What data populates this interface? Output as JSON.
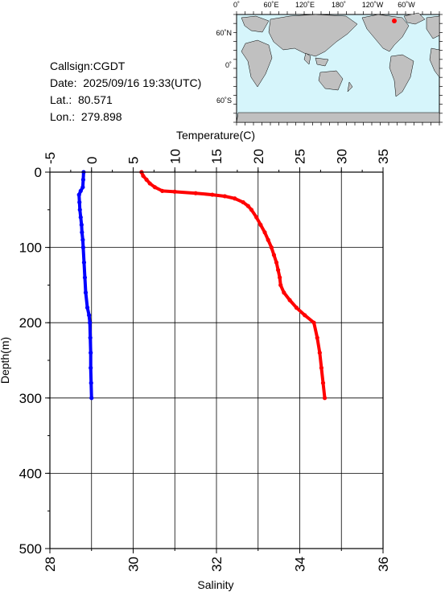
{
  "info": {
    "callsign": "Callsign:CGDT",
    "date": "Date:  2025/09/16 19:33(UTC)",
    "lat": "Lat.:  80.571",
    "lon": "Lon.:  279.898"
  },
  "map": {
    "top_labels": [
      "0˚",
      "60˚E",
      "120˚E",
      "180˚",
      "120˚W",
      "60˚W"
    ],
    "side_labels": [
      "60˚N",
      "0˚",
      "60˚S"
    ],
    "ocean_color": "#d6f5fb",
    "land_color": "#c0c0c0",
    "marker_color": "#ff0000"
  },
  "chart_data": {
    "type": "line",
    "ylabel": "Depth(m)",
    "ylim": [
      500,
      0
    ],
    "y_ticks": [
      0,
      100,
      200,
      300,
      400,
      500
    ],
    "top_axis": {
      "label": "Temperature(C)",
      "range": [
        -5,
        35
      ],
      "ticks": [
        -5,
        0,
        5,
        10,
        15,
        20,
        25,
        30,
        35
      ]
    },
    "bottom_axis": {
      "label": "Salinity",
      "range": [
        28,
        36
      ],
      "ticks": [
        28,
        30,
        32,
        34,
        36
      ]
    },
    "series": [
      {
        "axis": "salinity",
        "color": "#0000ff",
        "depth": [
          0,
          10,
          20,
          25,
          30,
          40,
          50,
          60,
          70,
          80,
          90,
          100,
          120,
          140,
          160,
          180,
          190,
          200,
          220,
          240,
          260,
          280,
          300
        ],
        "values": [
          28.81,
          28.8,
          28.79,
          28.74,
          28.7,
          28.71,
          28.72,
          28.74,
          28.76,
          28.77,
          28.79,
          28.8,
          28.82,
          28.84,
          28.86,
          28.9,
          28.94,
          28.96,
          28.97,
          28.98,
          28.98,
          28.99,
          29.0
        ]
      },
      {
        "axis": "temperature",
        "color": "#ff0000",
        "depth": [
          0,
          5,
          10,
          15,
          20,
          25,
          26,
          28,
          30,
          32,
          35,
          40,
          45,
          50,
          60,
          70,
          80,
          90,
          100,
          110,
          120,
          130,
          140,
          150,
          160,
          170,
          180,
          190,
          200,
          220,
          240,
          260,
          280,
          300
        ],
        "values": [
          6.0,
          6.2,
          6.6,
          7.0,
          7.6,
          8.5,
          10.0,
          12.5,
          14.5,
          16.0,
          17.2,
          18.2,
          18.8,
          19.2,
          19.8,
          20.3,
          20.8,
          21.2,
          21.6,
          21.9,
          22.2,
          22.4,
          22.6,
          22.7,
          23.1,
          23.8,
          24.6,
          25.6,
          26.7,
          27.1,
          27.4,
          27.6,
          27.8,
          28.0
        ]
      }
    ],
    "grid": true
  }
}
